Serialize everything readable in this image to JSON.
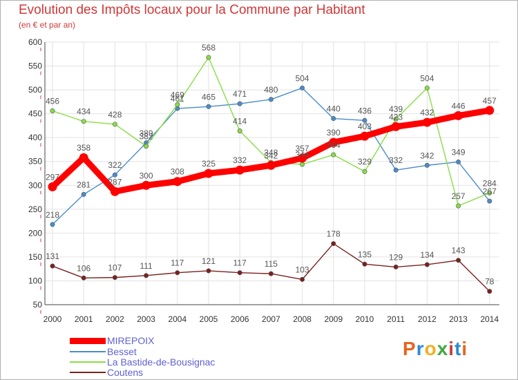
{
  "header": {
    "title": "Evolution des Impôts locaux pour la Commune par Habitant",
    "subtitle": "(en € et par an)"
  },
  "logo": {
    "text": "Proxiti",
    "colors": [
      "#e8641e",
      "#2a8ad8",
      "#f0b020",
      "#40a840",
      "#d03838",
      "#2a8ad8",
      "#e8641e"
    ]
  },
  "chart_data": {
    "type": "line",
    "title": "Evolution des Impôts locaux pour la Commune par Habitant",
    "subtitle": "(en € et par an)",
    "xlabel": "",
    "ylabel": "",
    "ylim": [
      50,
      600
    ],
    "yticks": [
      50,
      100,
      150,
      200,
      250,
      300,
      350,
      400,
      450,
      500,
      550,
      600
    ],
    "grid": true,
    "legend_position": "bottom-left",
    "x": [
      "2000",
      "2001",
      "2002",
      "2003",
      "2004",
      "2005",
      "2006",
      "2007",
      "2008",
      "2009",
      "2010",
      "2011",
      "2012",
      "2013",
      "2014"
    ],
    "series": [
      {
        "name": "MIREPOIX",
        "color": "#ff0000",
        "values": [
          297,
          358,
          287,
          300,
          308,
          325,
          332,
          342,
          357,
          390,
          403,
          423,
          432,
          446,
          457
        ]
      },
      {
        "name": "Besset",
        "color": "#4a8cc8",
        "values": [
          218,
          281,
          322,
          389,
          461,
          465,
          471,
          480,
          504,
          440,
          436,
          332,
          342,
          349,
          267
        ]
      },
      {
        "name": "La Bastide-de-Bousignac",
        "color": "#88dd44",
        "values": [
          456,
          434,
          428,
          382,
          469,
          568,
          414,
          348,
          344,
          364,
          329,
          439,
          504,
          257,
          284
        ]
      },
      {
        "name": "Coutens",
        "color": "#7a2020",
        "values": [
          131,
          106,
          107,
          111,
          117,
          121,
          117,
          115,
          103,
          178,
          135,
          129,
          134,
          143,
          78
        ]
      }
    ]
  }
}
